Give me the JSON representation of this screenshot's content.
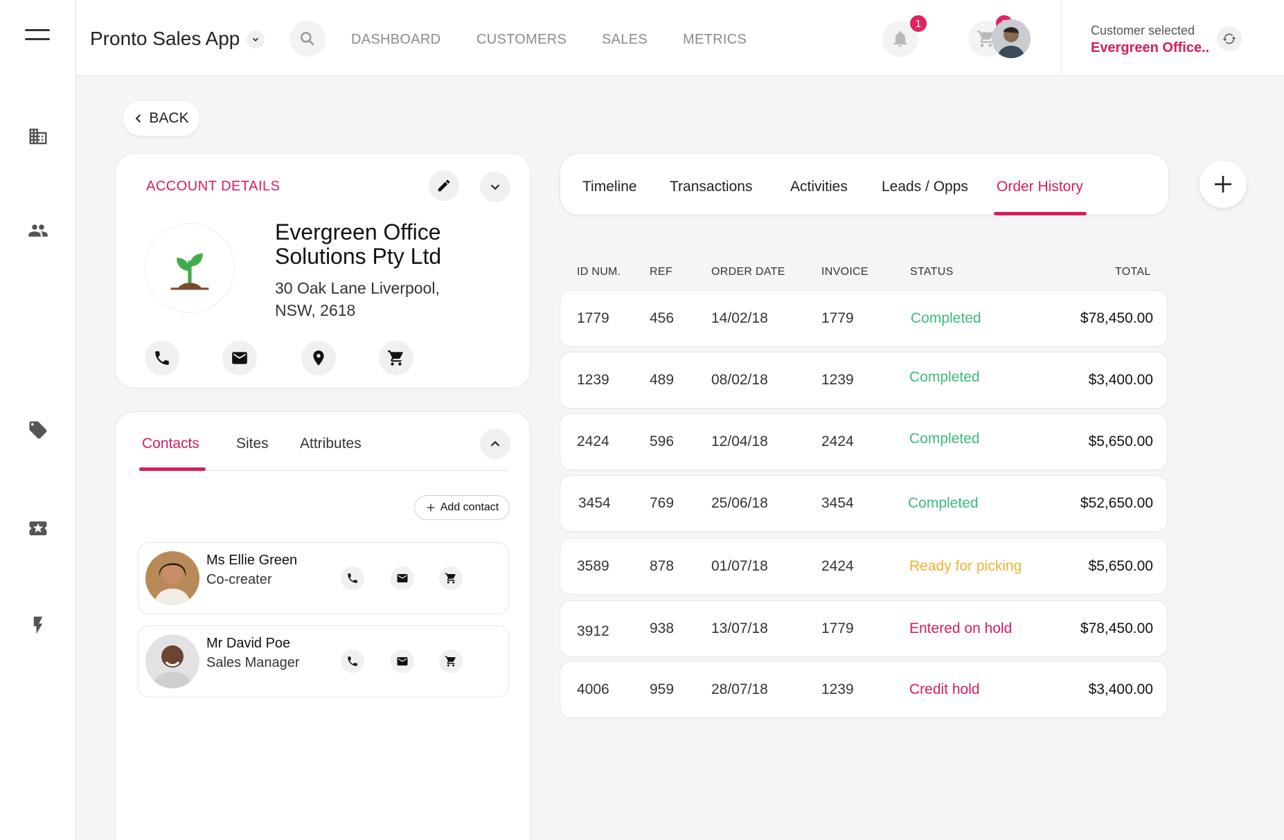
{
  "header": {
    "app_title": "Pronto Sales App",
    "nav": [
      "DASHBOARD",
      "CUSTOMERS",
      "SALES",
      "METRICS"
    ],
    "notifications_count": "1",
    "cart_count": "2",
    "customer_label": "Customer selected",
    "customer_value": "Evergreen Office.."
  },
  "back_label": "BACK",
  "account": {
    "title": "ACCOUNT DETAILS",
    "company_name": "Evergreen Office Solutions Pty Ltd",
    "address_line1": "30 Oak Lane  Liverpool,",
    "address_line2": "NSW, 2618"
  },
  "contacts_tabs": [
    "Contacts",
    "Sites",
    "Attributes"
  ],
  "add_contact_label": "Add contact",
  "contacts": [
    {
      "name": "Ms Ellie Green",
      "role": "Co-creater"
    },
    {
      "name": "Mr David Poe",
      "role": "Sales Manager"
    }
  ],
  "tabs": [
    "Timeline",
    "Transactions",
    "Activities",
    "Leads / Opps",
    "Order History"
  ],
  "table": {
    "headers": [
      "ID NUM.",
      "REF",
      "ORDER DATE",
      "INVOICE",
      "STATUS",
      "TOTAL"
    ],
    "rows": [
      {
        "id": "1779",
        "ref": "456",
        "date": "14/02/18",
        "invoice": "1779",
        "status": "Completed",
        "total": "$78,450.00"
      },
      {
        "id": "1239",
        "ref": "489",
        "date": "08/02/18",
        "invoice": "1239",
        "status": "Completed",
        "total": "$3,400.00"
      },
      {
        "id": "2424",
        "ref": "596",
        "date": "12/04/18",
        "invoice": "2424",
        "status": "Completed",
        "total": "$5,650.00"
      },
      {
        "id": "3454",
        "ref": "769",
        "date": "25/06/18",
        "invoice": "3454",
        "status": "Completed",
        "total": "$52,650.00"
      },
      {
        "id": "3589",
        "ref": "878",
        "date": "01/07/18",
        "invoice": "2424",
        "status": "Ready for picking",
        "total": "$5,650.00"
      },
      {
        "id": "3912",
        "ref": "938",
        "date": "13/07/18",
        "invoice": "1779",
        "status": "Entered on hold",
        "total": "$78,450.00"
      },
      {
        "id": "4006",
        "ref": "959",
        "date": "28/07/18",
        "invoice": "1239",
        "status": "Credit hold",
        "total": "$3,400.00"
      }
    ]
  },
  "colors": {
    "accent": "#d81b60",
    "completed": "#3dbb7a",
    "ready": "#f2b134",
    "hold": "#d81b60"
  },
  "icons": {
    "sidebar": [
      "menu-icon",
      "building-icon",
      "people-icon",
      "tag-icon",
      "ticket-star-icon",
      "bolt-icon"
    ]
  }
}
